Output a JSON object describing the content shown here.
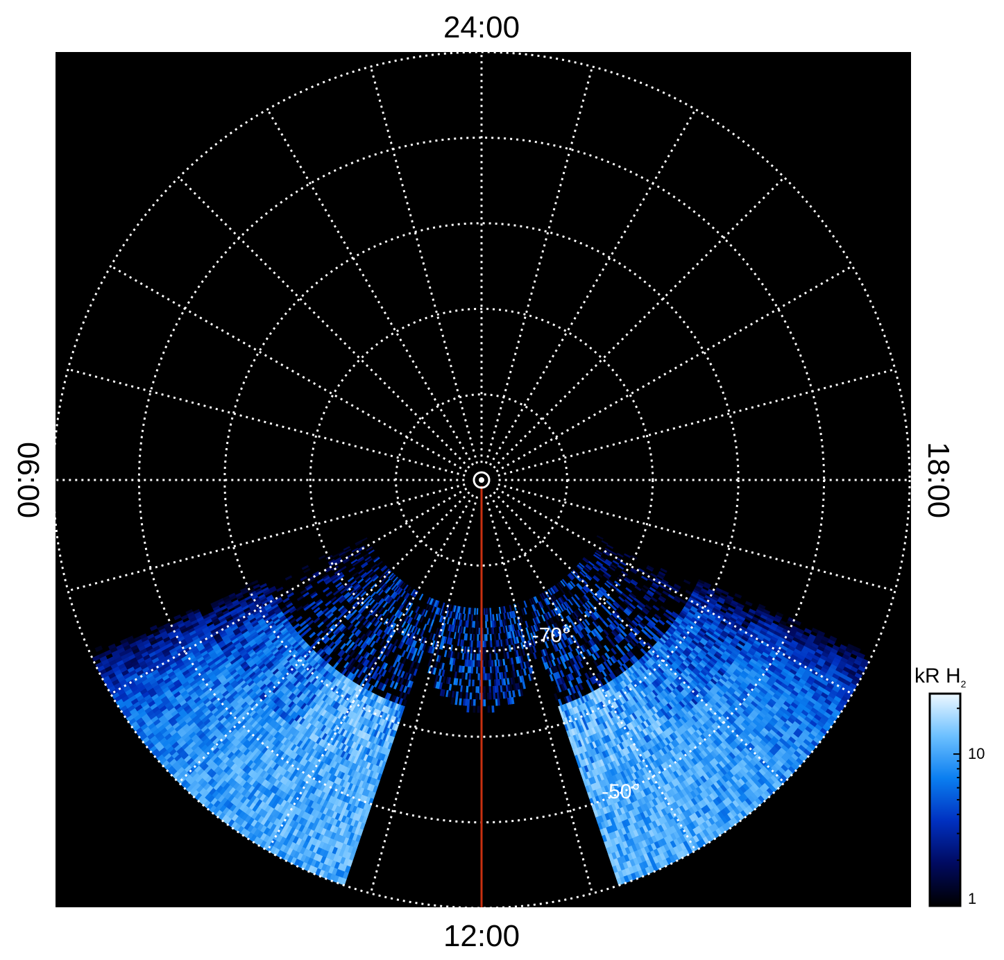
{
  "chart_data": {
    "type": "heatmap",
    "projection": "polar",
    "local_time_labels": {
      "top": "24:00",
      "bottom": "12:00",
      "left": "06:00",
      "right": "18:00"
    },
    "latitude_labels": [
      {
        "text": "-70°",
        "latitude": -70
      },
      {
        "text": "-50°",
        "latitude": -50
      }
    ],
    "latitude_circles": [
      -80,
      -70,
      -60,
      -50,
      -40
    ],
    "meridian_count": 24,
    "grid": true,
    "colorbar": {
      "title": "kR H",
      "title_subscript": "2",
      "scale": "log",
      "range": [
        1,
        25
      ],
      "tick_labels": [
        {
          "text": "10",
          "value": 10
        },
        {
          "text": "1",
          "value": 1
        }
      ],
      "colors": [
        "#000000",
        "#000a60",
        "#0030c0",
        "#0a7ef0",
        "#6cc0ff",
        "#eef8ff"
      ]
    },
    "emission_region": {
      "latitude_range": [
        -75,
        -40
      ],
      "local_time_range_hours": [
        7.5,
        16.5
      ],
      "peak_local_time_hours": 12,
      "peak_latitude": -60,
      "peak_intensity_kR": 18
    },
    "meridian_marker": {
      "local_time": "12:00",
      "color": "#c83010"
    }
  }
}
